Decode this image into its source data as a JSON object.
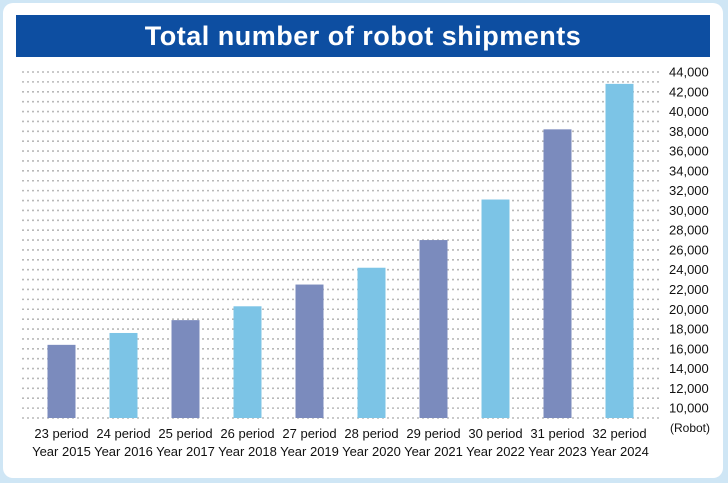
{
  "chart_data": {
    "type": "bar",
    "title": "Total number of robot shipments",
    "unit": "(Robot)",
    "categories": [
      {
        "period": "23 period",
        "year": "Year 2015"
      },
      {
        "period": "24 period",
        "year": "Year 2016"
      },
      {
        "period": "25 period",
        "year": "Year 2017"
      },
      {
        "period": "26 period",
        "year": "Year 2018"
      },
      {
        "period": "27 period",
        "year": "Year 2019"
      },
      {
        "period": "28 period",
        "year": "Year 2020"
      },
      {
        "period": "29 period",
        "year": "Year 2021"
      },
      {
        "period": "30 period",
        "year": "Year 2022"
      },
      {
        "period": "31 period",
        "year": "Year 2023"
      },
      {
        "period": "32 period",
        "year": "Year 2024"
      }
    ],
    "values": [
      16400,
      17600,
      18900,
      20300,
      22500,
      24200,
      27000,
      31100,
      38200,
      42800
    ],
    "yticks": [
      "10,000",
      "12,000",
      "14,000",
      "16,000",
      "18,000",
      "20,000",
      "22,000",
      "24,000",
      "26,000",
      "28,000",
      "30,000",
      "32,000",
      "34,000",
      "36,000",
      "38,000",
      "40,000",
      "42,000",
      "44,000"
    ],
    "ylim": [
      9000,
      44000
    ],
    "bar_colors": [
      "#7b8bbd",
      "#7cc4e6"
    ]
  }
}
